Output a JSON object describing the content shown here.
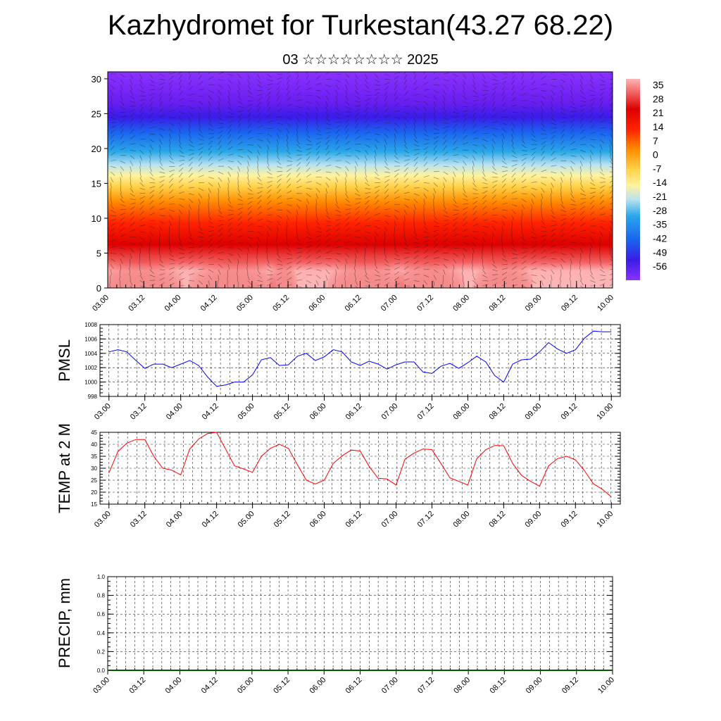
{
  "title": "Kazhydromet for Turkestan(43.27 68.22)",
  "subtitle": "03 ☆☆☆☆☆☆☆☆ 2025",
  "colors": {
    "pmsl_line": "#0000ff",
    "temp_line": "#ff0000",
    "precip_line": "#005a00"
  },
  "chart_data": [
    {
      "type": "heatmap",
      "yticks": [
        0,
        5,
        10,
        15,
        20,
        25,
        30
      ],
      "ylim": [
        0,
        31
      ],
      "xtick_labels": [
        "03.00",
        "03.12",
        "04.00",
        "04.12",
        "05.00",
        "05.12",
        "06.00",
        "06.12",
        "07.00",
        "07.12",
        "08.00",
        "08.12",
        "09.00",
        "09.12",
        "10.00"
      ],
      "colorbar_labels": [
        "35",
        "28",
        "21",
        "14",
        "7",
        "0",
        "-7",
        "-14",
        "-21",
        "-28",
        "-35",
        "-42",
        "-49",
        "-56"
      ],
      "colorbar_range": [
        -63,
        38
      ],
      "overlay": "wind barbs"
    },
    {
      "type": "line",
      "ylabel": "PMSL",
      "ylim": [
        998,
        1008
      ],
      "yticks": [
        998,
        1000,
        1002,
        1004,
        1006,
        1008
      ],
      "xtick_labels": [
        "03.00",
        "03.12",
        "04.00",
        "04.12",
        "05.00",
        "05.12",
        "06.00",
        "06.12",
        "07.00",
        "07.12",
        "08.00",
        "08.12",
        "09.00",
        "09.12",
        "10.00"
      ],
      "xrange": [
        -1,
        57
      ],
      "x": [
        0,
        1,
        2,
        3,
        4,
        5,
        6,
        7,
        8,
        9,
        10,
        11,
        12,
        13,
        14,
        15,
        16,
        17,
        18,
        19,
        20,
        21,
        22,
        23,
        24,
        25,
        26,
        27,
        28,
        29,
        30,
        31,
        32,
        33,
        34,
        35,
        36,
        37,
        38,
        39,
        40,
        41,
        42,
        43,
        44,
        45,
        46,
        47,
        48,
        49,
        50,
        51,
        52,
        53,
        54,
        55,
        56
      ],
      "values": [
        1004.2,
        1004.5,
        1004.2,
        1003,
        1001.9,
        1002.5,
        1002.5,
        1002,
        1002.5,
        1003,
        1002.3,
        1000.7,
        999.4,
        999.6,
        1000,
        1000,
        1001,
        1003.1,
        1003.4,
        1002.3,
        1002.4,
        1003.6,
        1004,
        1003,
        1003.5,
        1004.5,
        1004.2,
        1002.8,
        1002.3,
        1002.9,
        1002.5,
        1001.8,
        1002.4,
        1002.8,
        1002.8,
        1001.4,
        1001.2,
        1002.2,
        1002.6,
        1001.9,
        1002.7,
        1003.6,
        1002.8,
        1000.9,
        1000,
        1002.5,
        1003.1,
        1003.2,
        1004.2,
        1005.5,
        1004.6,
        1004,
        1004.5,
        1006.1,
        1007.1,
        1007,
        1007
      ]
    },
    {
      "type": "line",
      "ylabel": "TEMP at 2 M",
      "ylim": [
        15,
        45
      ],
      "yticks": [
        15,
        20,
        25,
        30,
        35,
        40,
        45
      ],
      "xtick_labels": [
        "03.00",
        "03.12",
        "04.00",
        "04.12",
        "05.00",
        "05.12",
        "06.00",
        "06.12",
        "07.00",
        "07.12",
        "08.00",
        "08.12",
        "09.00",
        "09.12",
        "10.00"
      ],
      "xrange": [
        -1,
        57
      ],
      "x": [
        0,
        1,
        2,
        3,
        4,
        5,
        6,
        7,
        8,
        9,
        10,
        11,
        12,
        13,
        14,
        15,
        16,
        17,
        18,
        19,
        20,
        21,
        22,
        23,
        24,
        25,
        26,
        27,
        28,
        29,
        30,
        31,
        32,
        33,
        34,
        35,
        36,
        37,
        38,
        39,
        40,
        41,
        42,
        43,
        44,
        45,
        46,
        47,
        48,
        49,
        50,
        51,
        52,
        53,
        54,
        55,
        56
      ],
      "values": [
        28,
        37,
        40.5,
        42,
        42,
        35,
        30,
        29.2,
        27.2,
        38,
        42.2,
        44.5,
        45,
        38,
        31,
        29.7,
        28.3,
        35,
        38.3,
        40,
        38.3,
        31.5,
        25,
        23.4,
        25,
        32,
        35.2,
        37.6,
        37.2,
        30.8,
        25.8,
        25.5,
        23,
        33.8,
        36.3,
        38,
        37.8,
        32,
        26,
        24.5,
        23,
        34,
        37.7,
        39.5,
        39.4,
        32,
        27,
        24.5,
        22.5,
        31,
        34,
        35,
        33.5,
        29,
        23.5,
        21.2,
        18
      ]
    },
    {
      "type": "line",
      "ylabel": "PRECIP, mm",
      "ylim": [
        0,
        1
      ],
      "yticks": [
        0,
        0.2,
        0.4,
        0.6,
        0.8,
        1.0
      ],
      "ytick_labels": [
        "0.0",
        "0.2",
        "0.4",
        "0.6",
        "0.8",
        "1.0"
      ],
      "xtick_labels": [
        "03.00",
        "03.12",
        "04.00",
        "04.12",
        "05.00",
        "05.12",
        "06.00",
        "06.12",
        "07.00",
        "07.12",
        "08.00",
        "08.12",
        "09.00",
        "09.12",
        "10.00"
      ],
      "xrange": [
        0,
        56
      ],
      "x": [
        0,
        56
      ],
      "values": [
        0,
        0
      ]
    }
  ]
}
